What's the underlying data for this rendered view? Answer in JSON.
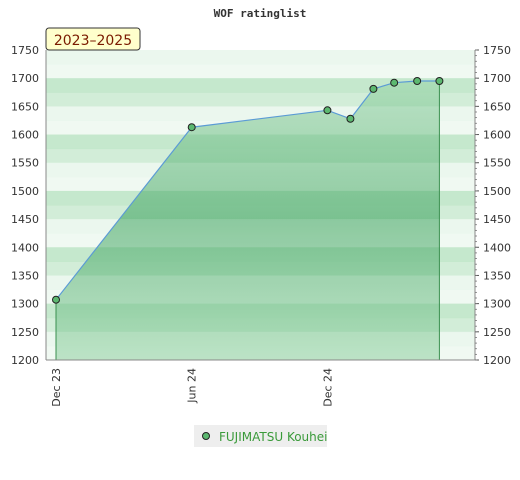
{
  "chart_data": {
    "type": "area",
    "title": "WOF ratinglist",
    "period_label": "2023–2025",
    "xlabel": "",
    "ylabel": "",
    "x_ticks": [
      "Dec 23",
      "Jun 24",
      "Dec 24"
    ],
    "x_domain": [
      "2023-12-01",
      "2025-06-18"
    ],
    "ylim": [
      1200,
      1750
    ],
    "y_ticks": [
      1200,
      1250,
      1300,
      1350,
      1400,
      1450,
      1500,
      1550,
      1600,
      1650,
      1700,
      1750
    ],
    "y_axis_sides": [
      "left",
      "right"
    ],
    "grid": false,
    "legend_position": "bottom-center",
    "series": [
      {
        "name": "FUJIMATSU Kouhei",
        "x": [
          "2023-12-01",
          "2024-06-01",
          "2024-12-01",
          "2025-01-01",
          "2025-02-01",
          "2025-03-01",
          "2025-04-01",
          "2025-05-01"
        ],
        "values": [
          1307,
          1613,
          1643,
          1628,
          1681,
          1692,
          1695,
          1695
        ]
      }
    ],
    "colors": {
      "fill_light": "#a8dbb5",
      "fill_dark": "#6ab983",
      "line": "#5b9bd5",
      "marker": "#5cb870",
      "band_light": "#e9f6ec",
      "band_dark": "#bfe5c8",
      "label_box": "#ffffcc",
      "legend_bg": "#eeeeee"
    }
  }
}
